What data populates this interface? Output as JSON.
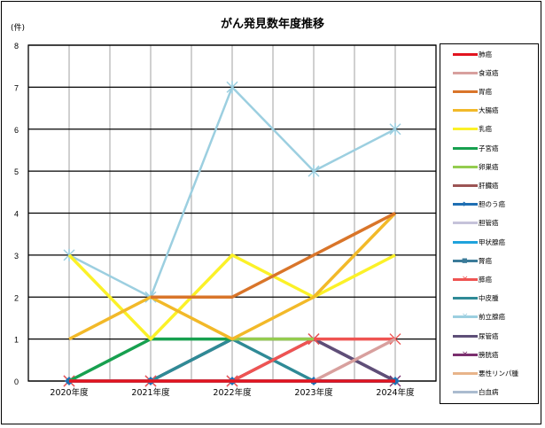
{
  "title": "がん発見数年度推移",
  "unit_label": "(件)",
  "chart_data": {
    "type": "line",
    "title": "がん発見数年度推移",
    "xlabel": "",
    "ylabel": "(件)",
    "ylim": [
      0,
      8
    ],
    "yticks": [
      0,
      1,
      2,
      3,
      4,
      5,
      6,
      7,
      8
    ],
    "grid": true,
    "legend_position": "right",
    "categories": [
      "2020年度",
      "2021年度",
      "2022年度",
      "2023年度",
      "2024年度"
    ],
    "series": [
      {
        "name": "肺癌",
        "color": "#e2141f",
        "marker": "none",
        "values": [
          0,
          0,
          0,
          0,
          0
        ]
      },
      {
        "name": "食道癌",
        "color": "#d8a09e",
        "marker": "none",
        "values": [
          0,
          0,
          0,
          0,
          1
        ]
      },
      {
        "name": "胃癌",
        "color": "#d9752a",
        "marker": "none",
        "values": [
          null,
          2,
          2,
          3,
          4
        ]
      },
      {
        "name": "大腸癌",
        "color": "#f2b929",
        "marker": "none",
        "values": [
          1,
          2,
          1,
          2,
          4
        ]
      },
      {
        "name": "乳癌",
        "color": "#fbf128",
        "marker": "none",
        "values": [
          3,
          1,
          3,
          2,
          3
        ]
      },
      {
        "name": "子宮癌",
        "color": "#17a04f",
        "marker": "none",
        "values": [
          0,
          1,
          1,
          null,
          null
        ]
      },
      {
        "name": "卵巣癌",
        "color": "#94cc4f",
        "marker": "none",
        "values": [
          null,
          null,
          1,
          1,
          null
        ]
      },
      {
        "name": "肝臓癌",
        "color": "#9c5454",
        "marker": "none",
        "values": [
          null,
          null,
          null,
          null,
          null
        ]
      },
      {
        "name": "胆のう癌",
        "color": "#1f6fb3",
        "marker": "diamond",
        "values": [
          0,
          0,
          0,
          0,
          0
        ]
      },
      {
        "name": "胆管癌",
        "color": "#c6c3da",
        "marker": "none",
        "values": [
          null,
          null,
          null,
          null,
          null
        ]
      },
      {
        "name": "甲状腺癌",
        "color": "#1fa3dc",
        "marker": "none",
        "values": [
          0,
          0,
          0,
          0,
          0
        ]
      },
      {
        "name": "腎癌",
        "color": "#3b7b99",
        "marker": "square",
        "values": [
          0,
          0,
          0,
          0,
          0
        ]
      },
      {
        "name": "膵癌",
        "color": "#ef5452",
        "marker": "x",
        "values": [
          0,
          0,
          0,
          1,
          1
        ]
      },
      {
        "name": "中皮腫",
        "color": "#2f8a96",
        "marker": "none",
        "values": [
          0,
          0,
          1,
          0,
          0
        ]
      },
      {
        "name": "前立腺癌",
        "color": "#9ccfe0",
        "marker": "asterisk",
        "values": [
          3,
          2,
          7,
          5,
          6
        ]
      },
      {
        "name": "尿管癌",
        "color": "#5e4f78",
        "marker": "none",
        "values": [
          0,
          0,
          1,
          1,
          0
        ]
      },
      {
        "name": "膀胱癌",
        "color": "#7b2f6e",
        "marker": "x",
        "values": [
          0,
          0,
          0,
          1,
          0
        ]
      },
      {
        "name": "悪性リンパ腫",
        "color": "#e8b48a",
        "marker": "none",
        "values": [
          null,
          null,
          null,
          null,
          null
        ]
      },
      {
        "name": "白血病",
        "color": "#aabbcf",
        "marker": "none",
        "values": [
          null,
          null,
          null,
          null,
          null
        ]
      }
    ]
  }
}
